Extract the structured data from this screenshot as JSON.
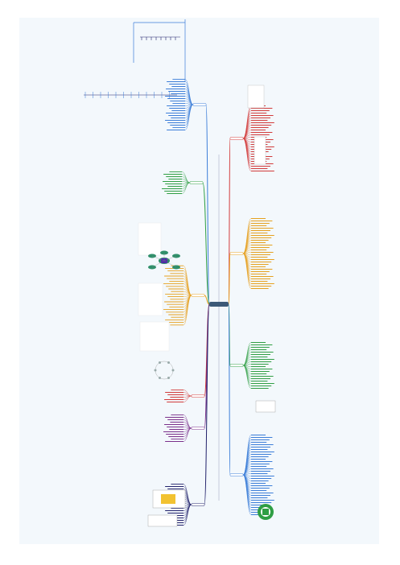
{
  "diagram": {
    "type": "mind-map",
    "center_label": "",
    "branch_colors": {
      "blue": "#3b7dd8",
      "red": "#d23a3a",
      "orange": "#e6a01e",
      "green": "#2f9e44",
      "purple": "#7a2f8a",
      "navy": "#22226b",
      "center": "#3c5a78"
    }
  }
}
